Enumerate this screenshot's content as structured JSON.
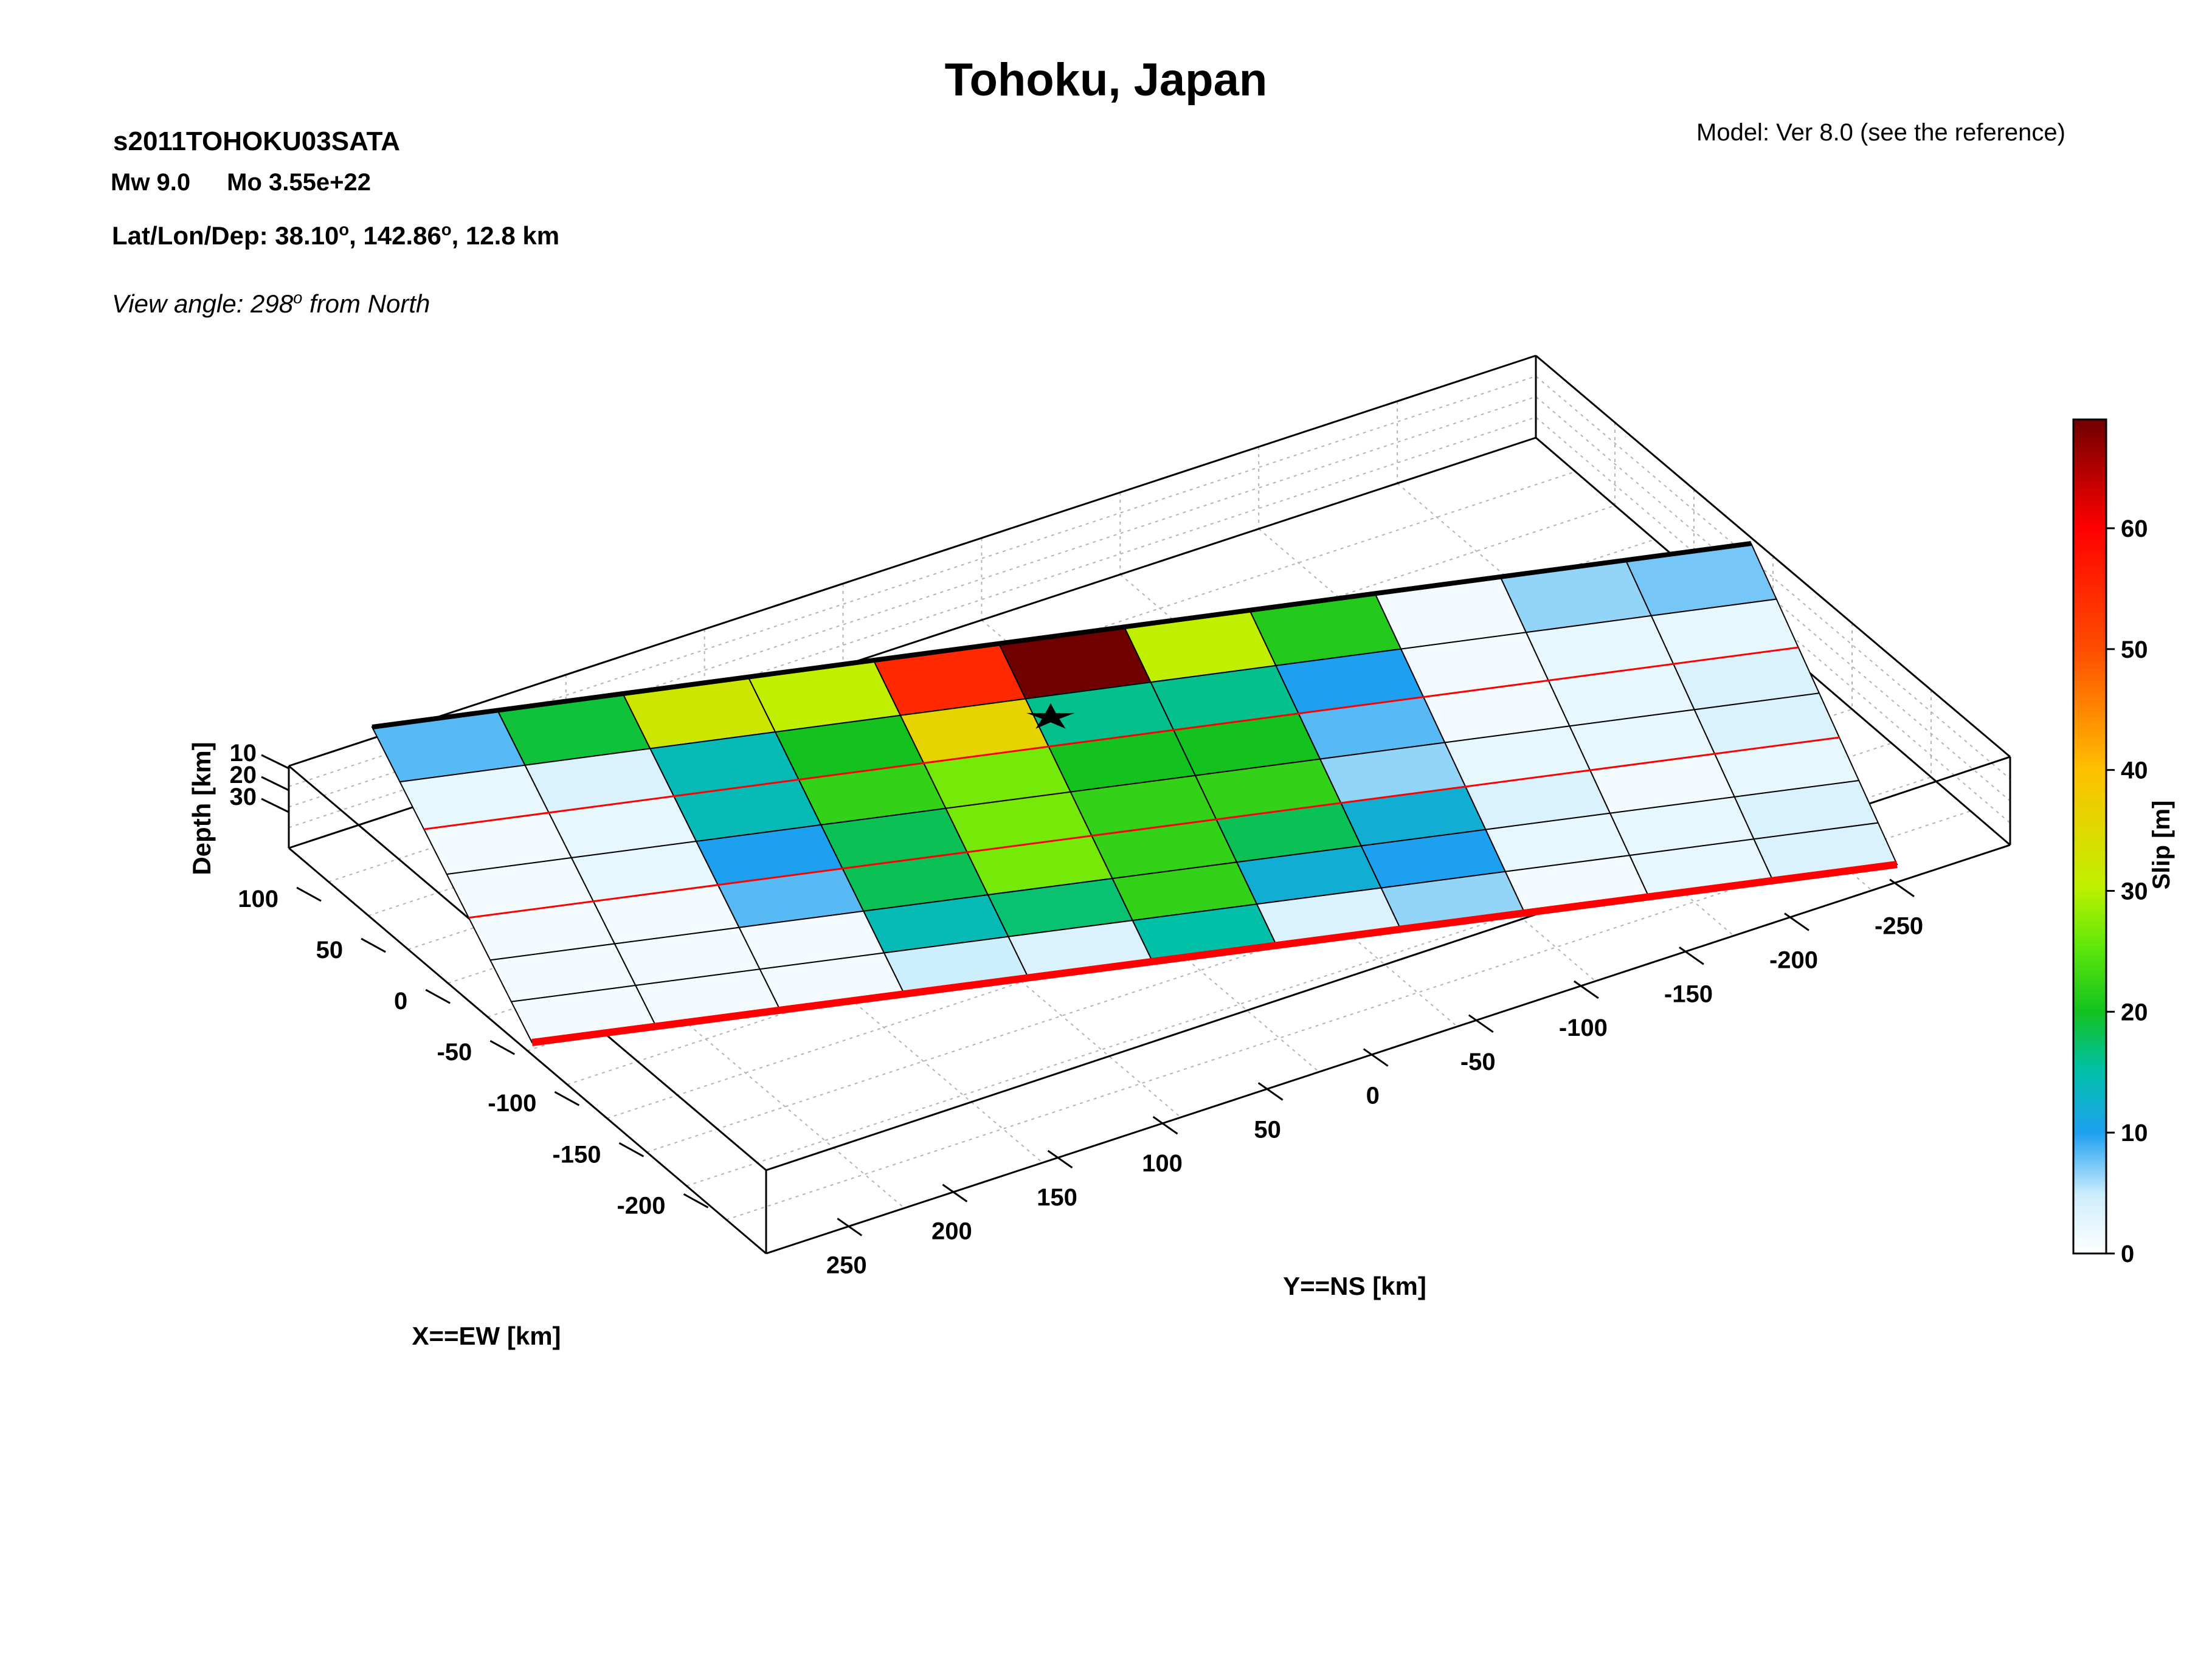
{
  "header": {
    "title": "Tohoku, Japan",
    "event_id": "s2011TOHOKU03SATA",
    "mw": "Mw 9.0",
    "mo": "Mo 3.55e+22",
    "hypocenter_prefix": "Lat/Lon/Dep: 38.10",
    "hypocenter_lon": ", 142.86",
    "hypocenter_dep": ", 12.8 km",
    "degree_sup": "o",
    "view_prefix": "View angle: 298",
    "view_suffix": " from North",
    "model": "Model: Ver 8.0 (see the reference)"
  },
  "colors": {
    "accent_red": "#ff0000",
    "box_line": "#000000",
    "grid": "#b4b4b4"
  },
  "chart_data": {
    "type": "heatmap",
    "title": "Tohoku, Japan",
    "xlabel": "X==EW [km]",
    "ylabel": "Y==NS [km]",
    "zlabel": "Depth [km]",
    "colorbar_label": "Slip [m]",
    "x_ticks": [
      100,
      50,
      0,
      -50,
      -100,
      -150,
      -200
    ],
    "y_ticks": [
      250,
      200,
      150,
      100,
      50,
      0,
      -50,
      -100,
      -150,
      -200,
      -250
    ],
    "z_ticks": [
      10,
      20,
      30
    ],
    "colorbar_ticks": [
      0,
      10,
      20,
      30,
      40,
      50,
      60
    ],
    "colorbar_range": [
      0,
      69
    ],
    "grid": true,
    "hypocenter_marker": "star",
    "slip_grid_note": "rows run from the top of the fault to its bottom, columns from south (+Y) to north (-Y); values in metres",
    "slip_rows": [
      [
        8,
        19,
        32,
        30,
        55,
        69,
        30,
        21,
        1,
        6,
        7
      ],
      [
        2,
        3,
        14,
        20,
        36,
        16,
        16,
        10,
        1,
        2,
        2
      ],
      [
        1,
        2,
        14,
        22,
        26,
        20,
        20,
        8,
        1,
        2,
        3
      ],
      [
        1,
        2,
        10,
        18,
        26,
        22,
        22,
        6,
        2,
        2,
        3
      ],
      [
        1,
        1,
        8,
        18,
        26,
        22,
        18,
        12,
        3,
        1,
        2
      ],
      [
        1,
        1,
        1,
        14,
        17,
        22,
        12,
        10,
        2,
        2,
        3
      ],
      [
        1,
        1,
        1,
        4,
        3,
        15,
        3,
        6,
        1,
        2,
        3
      ]
    ]
  }
}
